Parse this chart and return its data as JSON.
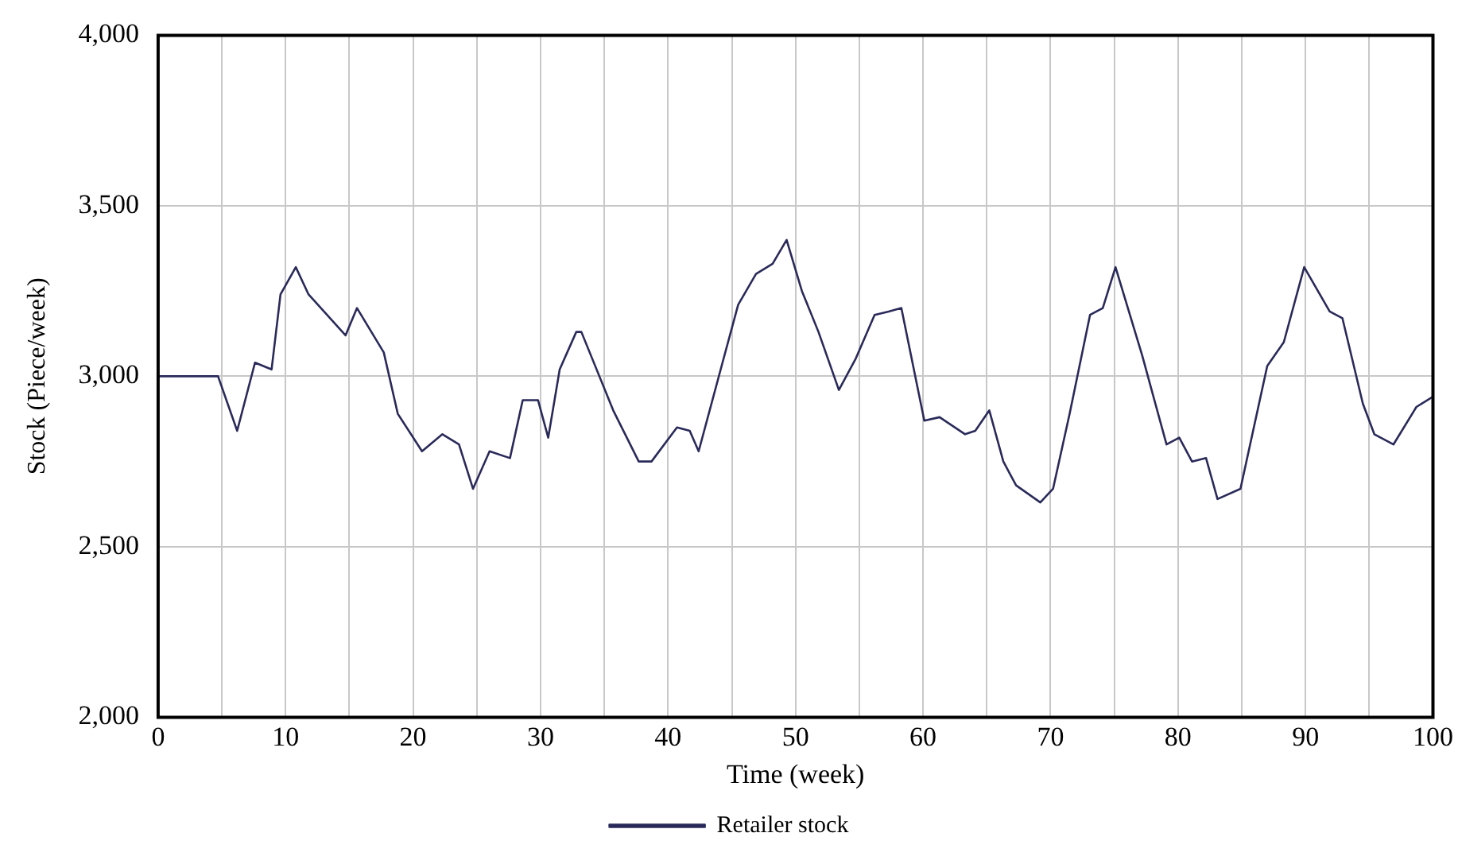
{
  "chart_data": {
    "type": "line",
    "xlabel": "Time (week)",
    "ylabel": "Stock (Piece/week)",
    "xlim": [
      0,
      100
    ],
    "ylim": [
      2000,
      4000
    ],
    "xticks": [
      0,
      {
        "value": 5,
        "label": null
      },
      10,
      {
        "value": 15,
        "label": null
      },
      20,
      {
        "value": 25,
        "label": null
      },
      30,
      {
        "value": 35,
        "label": null
      },
      40,
      {
        "value": 45,
        "label": null
      },
      50,
      {
        "value": 55,
        "label": null
      },
      60,
      {
        "value": 65,
        "label": null
      },
      70,
      {
        "value": 75,
        "label": null
      },
      80,
      {
        "value": 85,
        "label": null
      },
      90,
      {
        "value": 95,
        "label": null
      },
      100
    ],
    "yticks": [
      {
        "value": 2000,
        "label": "2,000"
      },
      {
        "value": 2500,
        "label": "2,500"
      },
      {
        "value": 3000,
        "label": "3,000"
      },
      {
        "value": 3500,
        "label": "3,500"
      },
      {
        "value": 4000,
        "label": "4,000"
      }
    ],
    "grid": true,
    "legend": "bottom",
    "line_style": "solid",
    "series": [
      {
        "name": "Retailer stock",
        "color": "#2a2a5a",
        "x": [
          0,
          4.7,
          6.2,
          7.6,
          8.9,
          9.6,
          10.8,
          11.8,
          14.7,
          15.6,
          17.7,
          18.8,
          20.7,
          22.3,
          23.6,
          24.7,
          26,
          27.6,
          28.6,
          29.8,
          30.6,
          31.5,
          32.8,
          33.2,
          35.7,
          37.7,
          38.7,
          40.7,
          41.7,
          42.4,
          44.2,
          45.5,
          46.9,
          48.2,
          49.3,
          50.5,
          51.8,
          53.4,
          54.7,
          56.2,
          57.3,
          58.3,
          60.1,
          61.3,
          63.3,
          64.1,
          65.2,
          66.3,
          67.3,
          69.2,
          70.2,
          71.5,
          73.1,
          74.1,
          75.1,
          77.2,
          79.1,
          80.1,
          81.1,
          82.2,
          83.1,
          84.9,
          87,
          88.3,
          89.9,
          91.9,
          92.9,
          94.5,
          95.4,
          96.9,
          98.7,
          100
        ],
        "values": [
          3000,
          3000,
          2840,
          3040,
          3020,
          3240,
          3320,
          3240,
          3120,
          3200,
          3070,
          2890,
          2780,
          2830,
          2800,
          2670,
          2780,
          2760,
          2930,
          2930,
          2820,
          3020,
          3130,
          3130,
          2900,
          2750,
          2750,
          2850,
          2840,
          2780,
          3030,
          3210,
          3300,
          3330,
          3400,
          3250,
          3130,
          2960,
          3050,
          3180,
          3190,
          3200,
          2870,
          2880,
          2830,
          2840,
          2900,
          2750,
          2680,
          2630,
          2670,
          2890,
          3180,
          3200,
          3320,
          3060,
          2800,
          2820,
          2750,
          2760,
          2640,
          2670,
          3030,
          3100,
          3320,
          3190,
          3170,
          2920,
          2830,
          2800,
          2910,
          2940
        ]
      }
    ]
  }
}
